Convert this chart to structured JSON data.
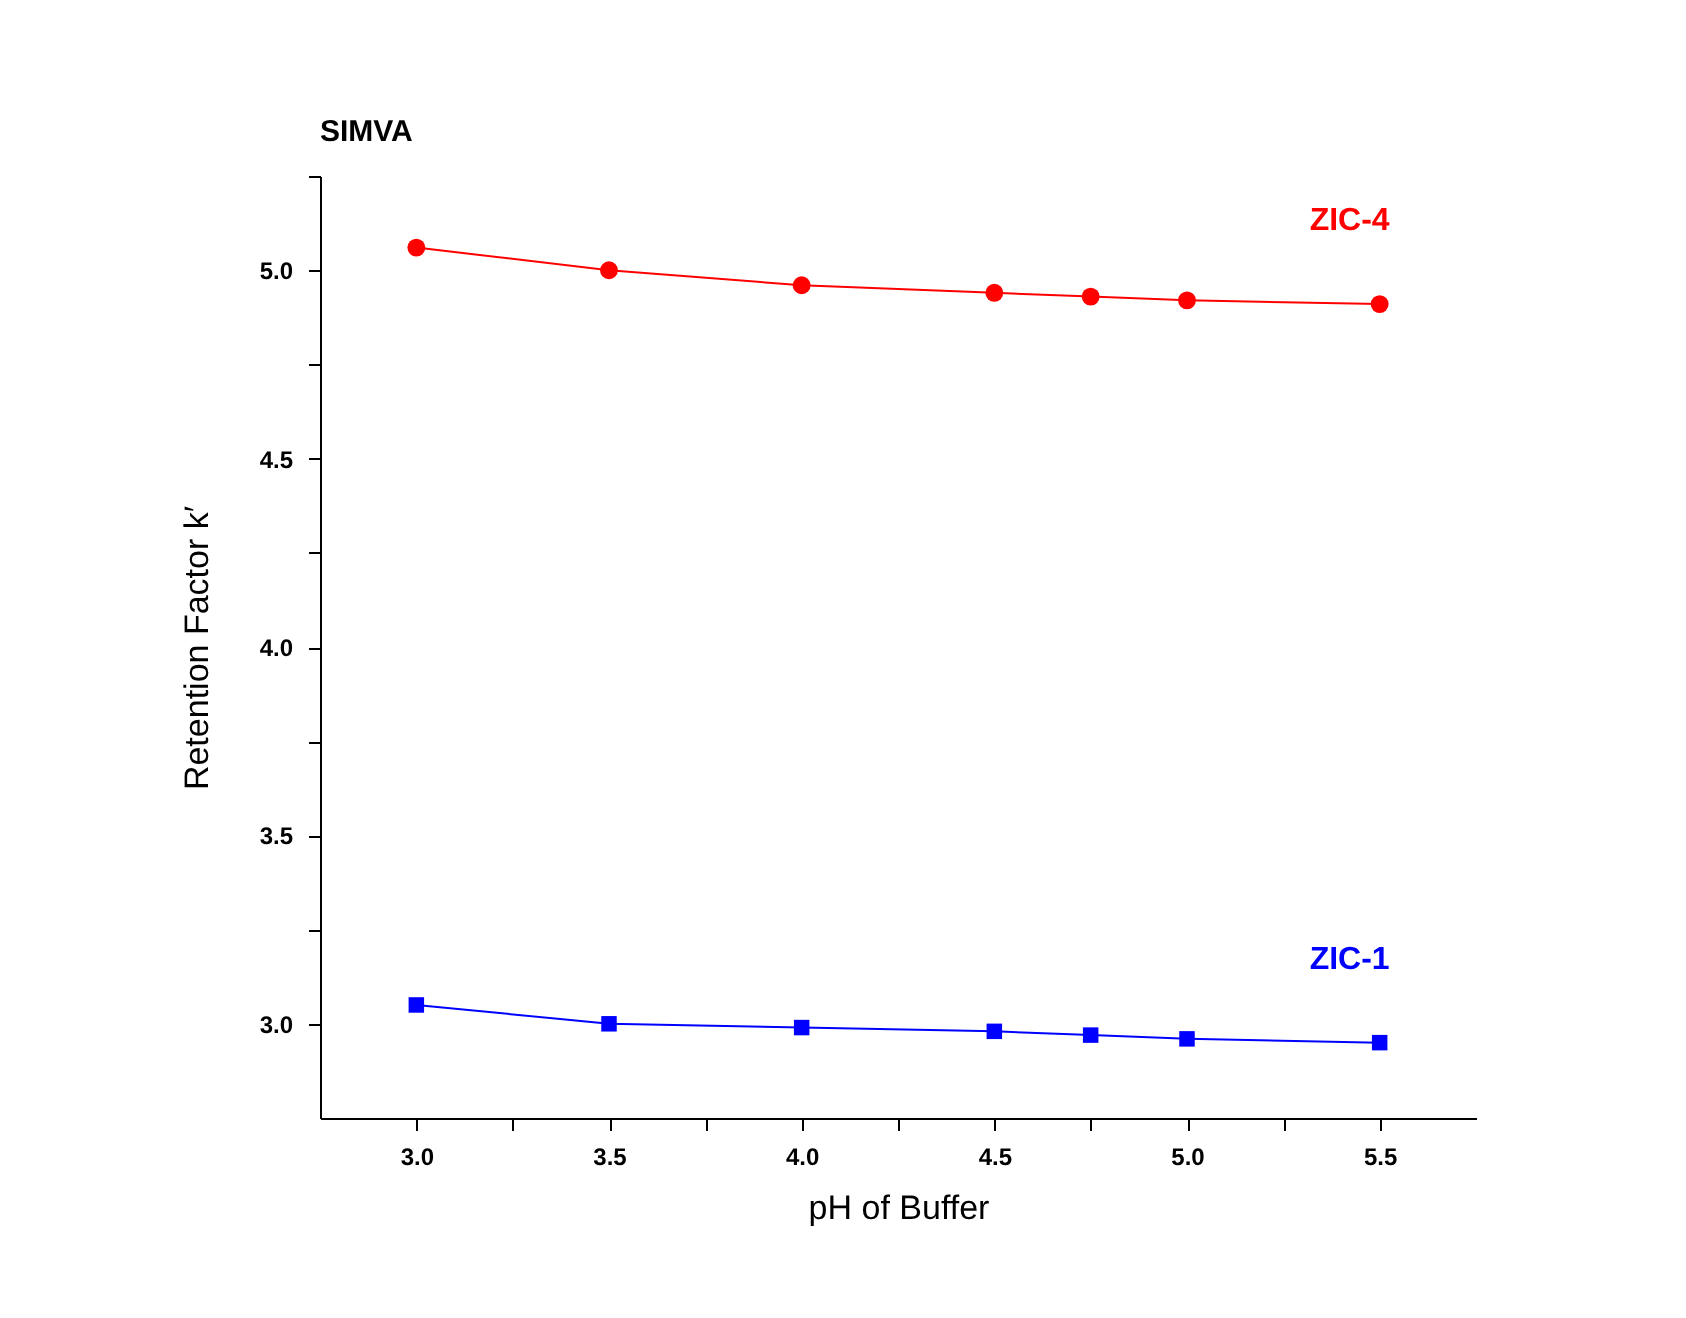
{
  "chart_data": {
    "type": "line",
    "title": "SIMVA",
    "xlabel": "pH of Buffer",
    "ylabel": "Retention Factor k′",
    "x": [
      3.0,
      3.5,
      4.0,
      4.5,
      4.75,
      5.0,
      5.5
    ],
    "series": [
      {
        "name": "ZIC-4",
        "color": "#ff0000",
        "marker": "circle",
        "values": [
          5.06,
          5.0,
          4.96,
          4.94,
          4.93,
          4.92,
          4.91
        ]
      },
      {
        "name": "ZIC-1",
        "color": "#0000ff",
        "marker": "square",
        "values": [
          3.05,
          3.0,
          2.99,
          2.98,
          2.97,
          2.96,
          2.95
        ]
      }
    ],
    "xlim": [
      2.75,
      5.75
    ],
    "xticks": [
      {
        "value": 3,
        "label": "3.0"
      },
      {
        "value": 3.25,
        "label": null
      },
      {
        "value": 3.5,
        "label": "3.5"
      },
      {
        "value": 3.75,
        "label": null
      },
      {
        "value": 4,
        "label": "4.0"
      },
      {
        "value": 4.25,
        "label": null
      },
      {
        "value": 4.5,
        "label": "4.5"
      },
      {
        "value": 4.75,
        "label": null
      },
      {
        "value": 5,
        "label": "5.0"
      },
      {
        "value": 5.25,
        "label": null
      },
      {
        "value": 5.5,
        "label": "5.5"
      }
    ],
    "ylim": [
      2.75,
      5.25
    ],
    "yticks": [
      {
        "value": 3,
        "label": "3.0"
      },
      {
        "value": 3.25,
        "label": null
      },
      {
        "value": 3.5,
        "label": "3.5"
      },
      {
        "value": 3.75,
        "label": null
      },
      {
        "value": 4,
        "label": "4.0"
      },
      {
        "value": 4.25,
        "label": null
      },
      {
        "value": 4.5,
        "label": "4.5"
      },
      {
        "value": 4.75,
        "label": null
      },
      {
        "value": 5,
        "label": "5.0"
      },
      {
        "value": 5.25,
        "label": null
      }
    ],
    "grid": false,
    "legend": false,
    "line_style": "solid"
  }
}
